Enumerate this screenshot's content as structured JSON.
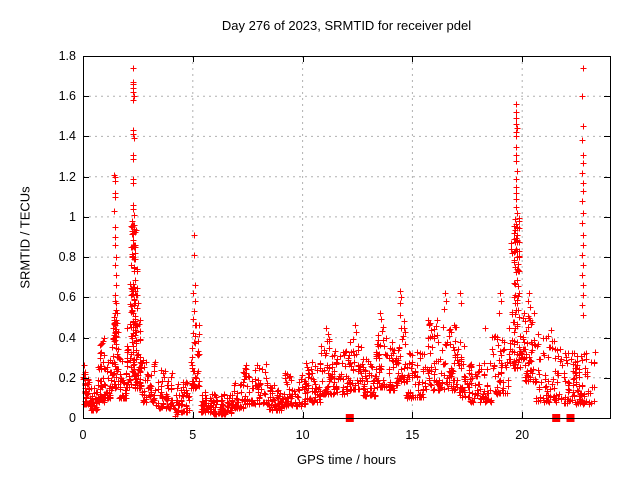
{
  "window": {
    "background": "#ffffff"
  },
  "chart_data": {
    "type": "scatter",
    "title": "Day 276 of 2023, SRMTID for receiver pdel",
    "xlabel": "GPS time / hours",
    "ylabel": "SRMTID / TECUs",
    "xlim": [
      0,
      24
    ],
    "ylim": [
      0,
      1.8
    ],
    "xticks": {
      "values": [
        0,
        5,
        10,
        15,
        20
      ],
      "labels": [
        "0",
        "5",
        "10",
        "15",
        "20"
      ]
    },
    "yticks": {
      "values": [
        0,
        0.2,
        0.4,
        0.6,
        0.8,
        1.0,
        1.2,
        1.4,
        1.6,
        1.8
      ],
      "labels": [
        "0",
        "0.2",
        "0.4",
        "0.6",
        "0.8",
        "1",
        "1.2",
        "1.4",
        "1.6",
        "1.8"
      ]
    },
    "grid": {
      "show": true,
      "color": "#b0b0b0",
      "style": "dashed"
    },
    "border_color": "#000000",
    "marker": {
      "shape": "plus",
      "color": "#ff0000",
      "size": 7
    },
    "points": [
      [
        1.43,
        1.21
      ],
      [
        1.45,
        1.2
      ],
      [
        1.44,
        1.18
      ],
      [
        1.44,
        1.12
      ],
      [
        1.46,
        1.1
      ],
      [
        1.43,
        1.03
      ],
      [
        1.45,
        0.95
      ],
      [
        1.47,
        0.9
      ],
      [
        1.44,
        0.86
      ],
      [
        1.49,
        0.8
      ],
      [
        1.47,
        0.76
      ],
      [
        1.51,
        0.71
      ],
      [
        1.49,
        0.66
      ],
      [
        1.46,
        0.61
      ],
      [
        1.52,
        0.57
      ],
      [
        1.54,
        0.52
      ],
      [
        1.4,
        0.5
      ],
      [
        1.55,
        0.47
      ],
      [
        1.38,
        0.45
      ],
      [
        1.58,
        0.43
      ],
      [
        2.28,
        1.74
      ],
      [
        2.26,
        1.67
      ],
      [
        2.29,
        1.66
      ],
      [
        2.27,
        1.64
      ],
      [
        2.28,
        1.62
      ],
      [
        2.3,
        1.6
      ],
      [
        2.26,
        1.58
      ],
      [
        2.27,
        1.43
      ],
      [
        2.29,
        1.41
      ],
      [
        2.3,
        1.39
      ],
      [
        2.26,
        1.31
      ],
      [
        2.28,
        1.29
      ],
      [
        2.27,
        1.19
      ],
      [
        2.29,
        1.17
      ],
      [
        2.26,
        1.06
      ],
      [
        2.28,
        1.04
      ],
      [
        2.3,
        1.01
      ],
      [
        2.25,
        0.98
      ],
      [
        2.31,
        0.96
      ],
      [
        2.24,
        0.93
      ],
      [
        5.05,
        0.91
      ],
      [
        5.07,
        0.81
      ],
      [
        5.09,
        0.66
      ],
      [
        5.03,
        0.62
      ],
      [
        5.11,
        0.58
      ],
      [
        5.06,
        0.53
      ],
      [
        5.01,
        0.49
      ],
      [
        5.13,
        0.46
      ],
      [
        4.2,
        0.01
      ],
      [
        4.27,
        0.02
      ],
      [
        11.08,
        0.45
      ],
      [
        11.14,
        0.42
      ],
      [
        12.4,
        0.46
      ],
      [
        12.45,
        0.43
      ],
      [
        13.52,
        0.52
      ],
      [
        13.56,
        0.49
      ],
      [
        14.45,
        0.63
      ],
      [
        14.49,
        0.6
      ],
      [
        14.42,
        0.57
      ],
      [
        16.5,
        0.62
      ],
      [
        16.55,
        0.58
      ],
      [
        16.45,
        0.54
      ],
      [
        17.18,
        0.62
      ],
      [
        17.23,
        0.57
      ],
      [
        18.3,
        0.45
      ],
      [
        19.0,
        0.62
      ],
      [
        19.05,
        0.58
      ],
      [
        18.95,
        0.52
      ],
      [
        19.72,
        1.56
      ],
      [
        19.74,
        1.52
      ],
      [
        19.7,
        1.49
      ],
      [
        19.73,
        1.46
      ],
      [
        19.75,
        1.44
      ],
      [
        19.71,
        1.42
      ],
      [
        19.72,
        1.4
      ],
      [
        19.74,
        1.35
      ],
      [
        19.7,
        1.31
      ],
      [
        19.73,
        1.28
      ],
      [
        19.75,
        1.23
      ],
      [
        19.72,
        1.19
      ],
      [
        19.7,
        1.15
      ],
      [
        19.74,
        1.12
      ],
      [
        19.73,
        1.09
      ],
      [
        19.71,
        1.05
      ],
      [
        19.75,
        1.02
      ],
      [
        19.69,
        0.99
      ],
      [
        19.5,
        0.87
      ],
      [
        19.48,
        0.84
      ],
      [
        19.53,
        0.82
      ],
      [
        20.3,
        0.62
      ],
      [
        20.26,
        0.58
      ],
      [
        20.36,
        0.55
      ],
      [
        21.3,
        0.44
      ],
      [
        22.75,
        1.74
      ],
      [
        22.73,
        1.6
      ],
      [
        22.76,
        1.45
      ],
      [
        22.74,
        1.38
      ],
      [
        22.75,
        1.31
      ],
      [
        22.77,
        1.27
      ],
      [
        22.74,
        1.22
      ],
      [
        22.76,
        1.17
      ],
      [
        22.75,
        1.13
      ],
      [
        22.73,
        1.08
      ],
      [
        22.76,
        1.02
      ],
      [
        22.74,
        0.97
      ],
      [
        22.75,
        0.91
      ],
      [
        22.77,
        0.86
      ],
      [
        22.74,
        0.81
      ],
      [
        22.76,
        0.76
      ],
      [
        22.73,
        0.71
      ],
      [
        22.75,
        0.66
      ],
      [
        22.76,
        0.61
      ],
      [
        22.74,
        0.56
      ],
      [
        22.77,
        0.51
      ]
    ],
    "dense_bands_format": "[x_start_hours, x_end_hours, y_min_TECUs, y_max_TECUs, point_count, bottom_bias_0to1]",
    "dense_bands": [
      [
        0.0,
        0.12,
        0.12,
        0.28,
        12,
        0.0
      ],
      [
        0.05,
        0.35,
        0.07,
        0.22,
        28,
        0.5
      ],
      [
        0.3,
        0.65,
        0.04,
        0.15,
        30,
        0.5
      ],
      [
        0.6,
        1.05,
        0.08,
        0.32,
        40,
        0.6
      ],
      [
        0.72,
        0.95,
        0.25,
        0.42,
        10,
        0.0
      ],
      [
        1.08,
        1.35,
        0.1,
        0.3,
        25,
        0.5
      ],
      [
        1.3,
        1.62,
        0.15,
        0.5,
        45,
        0.6
      ],
      [
        1.4,
        1.5,
        0.42,
        0.62,
        8,
        0.0
      ],
      [
        1.6,
        2.0,
        0.1,
        0.3,
        35,
        0.5
      ],
      [
        1.98,
        2.62,
        0.15,
        0.5,
        90,
        0.4
      ],
      [
        2.12,
        2.5,
        0.45,
        0.8,
        45,
        0.2
      ],
      [
        2.2,
        2.42,
        0.78,
        0.96,
        25,
        0.0
      ],
      [
        2.6,
        3.3,
        0.08,
        0.3,
        50,
        0.6
      ],
      [
        3.3,
        4.1,
        0.05,
        0.24,
        55,
        0.6
      ],
      [
        4.1,
        4.85,
        0.03,
        0.18,
        45,
        0.5
      ],
      [
        4.88,
        5.3,
        0.15,
        0.48,
        40,
        0.5
      ],
      [
        5.3,
        5.9,
        0.03,
        0.13,
        40,
        0.4
      ],
      [
        5.9,
        6.8,
        0.02,
        0.12,
        70,
        0.3
      ],
      [
        6.8,
        7.3,
        0.05,
        0.18,
        35,
        0.4
      ],
      [
        7.3,
        8.4,
        0.07,
        0.27,
        70,
        0.5
      ],
      [
        8.4,
        9.1,
        0.04,
        0.18,
        50,
        0.4
      ],
      [
        9.1,
        10.1,
        0.06,
        0.23,
        60,
        0.4
      ],
      [
        10.1,
        10.8,
        0.08,
        0.28,
        55,
        0.4
      ],
      [
        10.8,
        11.4,
        0.12,
        0.4,
        50,
        0.5
      ],
      [
        11.4,
        12.1,
        0.12,
        0.34,
        48,
        0.4
      ],
      [
        12.1,
        12.7,
        0.14,
        0.4,
        45,
        0.4
      ],
      [
        12.7,
        13.3,
        0.11,
        0.3,
        45,
        0.4
      ],
      [
        13.3,
        13.8,
        0.15,
        0.46,
        40,
        0.4
      ],
      [
        13.8,
        14.3,
        0.14,
        0.38,
        35,
        0.4
      ],
      [
        14.3,
        14.7,
        0.18,
        0.52,
        35,
        0.4
      ],
      [
        14.7,
        15.5,
        0.1,
        0.33,
        55,
        0.4
      ],
      [
        15.5,
        16.3,
        0.14,
        0.5,
        55,
        0.4
      ],
      [
        16.3,
        17.05,
        0.14,
        0.48,
        55,
        0.4
      ],
      [
        17.05,
        17.6,
        0.1,
        0.4,
        40,
        0.5
      ],
      [
        17.6,
        18.6,
        0.08,
        0.3,
        60,
        0.5
      ],
      [
        18.6,
        19.4,
        0.12,
        0.42,
        50,
        0.4
      ],
      [
        19.4,
        20.1,
        0.25,
        0.55,
        55,
        0.3
      ],
      [
        19.62,
        19.88,
        0.5,
        1.0,
        50,
        0.0
      ],
      [
        20.1,
        20.6,
        0.18,
        0.55,
        45,
        0.4
      ],
      [
        20.6,
        21.8,
        0.08,
        0.42,
        70,
        0.6
      ],
      [
        21.8,
        23.3,
        0.07,
        0.33,
        85,
        0.5
      ],
      [
        22.3,
        22.6,
        0.15,
        0.35,
        15,
        0.0
      ]
    ],
    "zero_cluster_squares": [
      [
        12.15,
        0
      ],
      [
        21.55,
        0
      ],
      [
        22.2,
        0
      ]
    ],
    "seed": 42
  }
}
